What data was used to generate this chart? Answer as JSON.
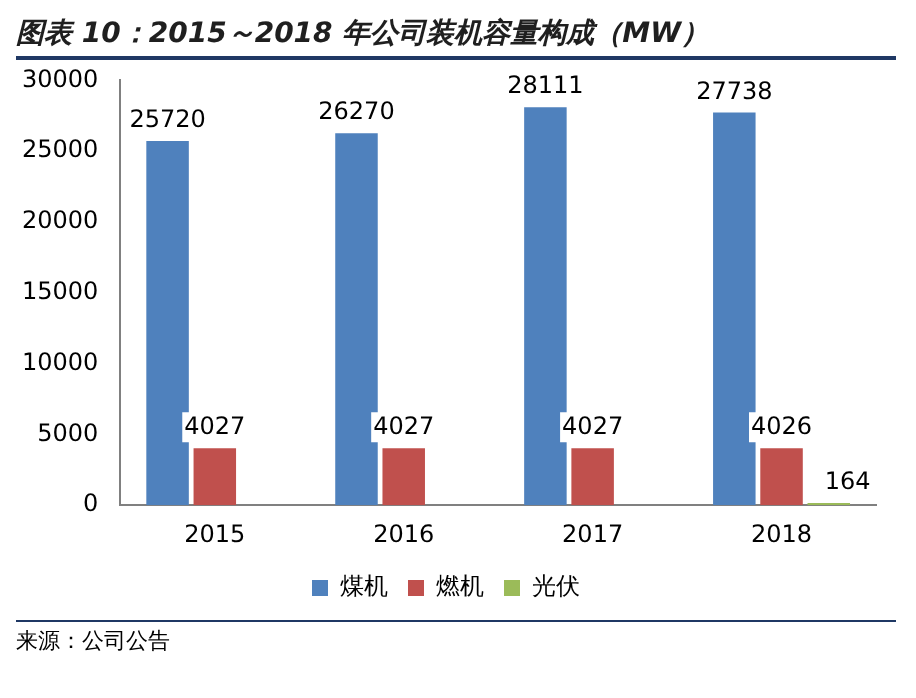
{
  "chart_data": {
    "type": "bar",
    "title": "图表 10：2015～2018 年公司装机容量构成（MW）",
    "categories": [
      "2015",
      "2016",
      "2017",
      "2018"
    ],
    "series": [
      {
        "name": "煤机",
        "color": "#4f81bd",
        "values": [
          25720,
          26270,
          28111,
          27738
        ]
      },
      {
        "name": "燃机",
        "color": "#c0504d",
        "values": [
          4027,
          4027,
          4027,
          4026
        ]
      },
      {
        "name": "光伏",
        "color": "#9bbb59",
        "values": [
          null,
          null,
          null,
          164
        ]
      }
    ],
    "ylim": [
      0,
      30000
    ],
    "yticks": [
      0,
      5000,
      10000,
      15000,
      20000,
      25000,
      30000
    ],
    "grid": false,
    "legend": "bottom",
    "data_labels": true,
    "annotations": [
      "来源：公司公告"
    ]
  }
}
